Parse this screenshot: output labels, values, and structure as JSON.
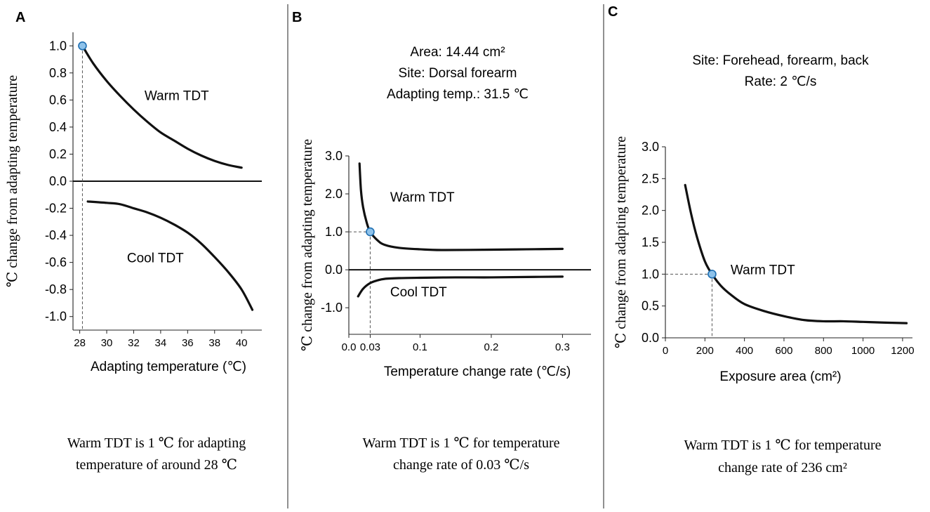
{
  "colors": {
    "curve": "#111111",
    "marker_fill": "#8ec2ea",
    "marker_stroke": "#1f6fb2",
    "divider": "#555555"
  },
  "chart_data": [
    {
      "letter": "A",
      "type": "line",
      "xlabel": "Adapting temperature (℃)",
      "ylabel": "℃ change from adapting temperature",
      "xlim": [
        27.5,
        41.5
      ],
      "ylim": [
        -1.1,
        1.1
      ],
      "xticks": [
        28,
        30,
        32,
        34,
        36,
        38,
        40
      ],
      "xtick_labels": [
        "28",
        "30",
        "32",
        "34",
        "36",
        "38",
        "40"
      ],
      "yticks": [
        1.0,
        0.8,
        0.6,
        0.4,
        0.2,
        0.0,
        -0.2,
        -0.4,
        -0.6,
        -0.8,
        -1.0
      ],
      "ytick_labels": [
        "1.0",
        "0.8",
        "0.6",
        "0.4",
        "0.2",
        "0.0",
        "-0.2",
        "-0.4",
        "-0.6",
        "-0.8",
        "-1.0"
      ],
      "baseline": {
        "y": 0.0,
        "x_from": 27.5,
        "x_to": 41.5
      },
      "series": [
        {
          "name": "Warm TDT",
          "x": [
            28.2,
            29.0,
            30.0,
            31.0,
            32.0,
            33.0,
            34.0,
            35.0,
            36.0,
            37.0,
            38.0,
            39.0,
            40.0
          ],
          "y": [
            1.0,
            0.87,
            0.74,
            0.63,
            0.53,
            0.44,
            0.36,
            0.3,
            0.24,
            0.19,
            0.15,
            0.12,
            0.1
          ]
        },
        {
          "name": "Cool TDT",
          "x": [
            28.6,
            30.0,
            31.0,
            32.0,
            33.0,
            34.0,
            35.0,
            36.0,
            37.0,
            38.0,
            39.0,
            40.0,
            40.8
          ],
          "y": [
            -0.15,
            -0.16,
            -0.17,
            -0.2,
            -0.23,
            -0.27,
            -0.32,
            -0.38,
            -0.46,
            -0.56,
            -0.67,
            -0.8,
            -0.95
          ]
        }
      ],
      "curve_labels": [
        {
          "text": "Warm TDT",
          "x": 32.8,
          "y": 0.6
        },
        {
          "text": "Cool TDT",
          "x": 31.5,
          "y": -0.6
        }
      ],
      "marker": {
        "x": 28.2,
        "y": 1.0
      },
      "guides": [
        {
          "x1": 28.2,
          "y1": 1.0,
          "x2": 28.2,
          "y2": -1.1
        }
      ],
      "info_lines": [],
      "note_lines": [
        "Warm TDT is 1 ℃ for adapting",
        "temperature of around 28 ℃"
      ]
    },
    {
      "letter": "B",
      "type": "line",
      "xlabel": "Temperature change rate (℃/s)",
      "ylabel": "℃ change from adapting temperature",
      "xlim": [
        0.0,
        0.34
      ],
      "ylim": [
        -1.7,
        3.0
      ],
      "xticks": [
        0.0,
        0.03,
        0.1,
        0.2,
        0.3
      ],
      "xtick_labels": [
        "0.0",
        "0.03",
        "0.1",
        "0.2",
        "0.3"
      ],
      "yticks": [
        3.0,
        2.0,
        1.0,
        0.0,
        -1.0
      ],
      "ytick_labels": [
        "3.0",
        "2.0",
        "1.0",
        "0.0",
        "-1.0"
      ],
      "baseline": {
        "y": 0.0,
        "x_from": 0.0,
        "x_to": 0.34
      },
      "series": [
        {
          "name": "Warm TDT",
          "x": [
            0.015,
            0.017,
            0.02,
            0.025,
            0.03,
            0.04,
            0.05,
            0.07,
            0.1,
            0.13,
            0.2,
            0.25,
            0.3
          ],
          "y": [
            2.8,
            2.1,
            1.65,
            1.25,
            1.0,
            0.78,
            0.66,
            0.58,
            0.54,
            0.52,
            0.53,
            0.54,
            0.55
          ]
        },
        {
          "name": "Cool TDT",
          "x": [
            0.013,
            0.02,
            0.03,
            0.04,
            0.05,
            0.07,
            0.1,
            0.15,
            0.2,
            0.25,
            0.3
          ],
          "y": [
            -0.7,
            -0.5,
            -0.35,
            -0.28,
            -0.24,
            -0.22,
            -0.21,
            -0.2,
            -0.2,
            -0.19,
            -0.18
          ]
        }
      ],
      "curve_labels": [
        {
          "text": "Warm TDT",
          "x": 0.058,
          "y": 1.8
        },
        {
          "text": "Cool TDT",
          "x": 0.058,
          "y": -0.7
        }
      ],
      "marker": {
        "x": 0.03,
        "y": 1.0
      },
      "guides": [
        {
          "x1": 0.0,
          "y1": 1.0,
          "x2": 0.03,
          "y2": 1.0
        },
        {
          "x1": 0.03,
          "y1": 1.0,
          "x2": 0.03,
          "y2": -1.7
        }
      ],
      "info_lines": [
        "Area: 14.44 cm²",
        "Site: Dorsal forearm",
        "Adapting temp.: 31.5 ℃"
      ],
      "note_lines": [
        "Warm TDT is 1 ℃ for temperature",
        "change rate of 0.03 ℃/s"
      ]
    },
    {
      "letter": "C",
      "type": "line",
      "xlabel": "Exposure area (cm²)",
      "ylabel": "℃ change from adapting temperature",
      "xlim": [
        0,
        1250
      ],
      "ylim": [
        0.0,
        3.0
      ],
      "xticks": [
        0,
        200,
        400,
        600,
        800,
        1000,
        1200
      ],
      "xtick_labels": [
        "0",
        "200",
        "400",
        "600",
        "800",
        "1000",
        "1200"
      ],
      "yticks": [
        3.0,
        2.5,
        2.0,
        1.5,
        1.0,
        0.5,
        0.0
      ],
      "ytick_labels": [
        "3.0",
        "2.5",
        "2.0",
        "1.5",
        "1.0",
        "0.5",
        "0.0"
      ],
      "baseline": null,
      "series": [
        {
          "name": "Warm TDT",
          "x": [
            100,
            130,
            160,
            200,
            236,
            280,
            330,
            400,
            500,
            600,
            700,
            800,
            900,
            1000,
            1100,
            1220
          ],
          "y": [
            2.4,
            1.95,
            1.58,
            1.2,
            1.0,
            0.82,
            0.68,
            0.53,
            0.42,
            0.34,
            0.28,
            0.26,
            0.26,
            0.25,
            0.24,
            0.23
          ]
        }
      ],
      "curve_labels": [
        {
          "text": "Warm TDT",
          "x": 330,
          "y": 1.0
        }
      ],
      "marker": {
        "x": 236,
        "y": 1.0
      },
      "guides": [
        {
          "x1": 0,
          "y1": 1.0,
          "x2": 236,
          "y2": 1.0
        },
        {
          "x1": 236,
          "y1": 1.0,
          "x2": 236,
          "y2": 0.0
        }
      ],
      "info_lines": [
        "Site: Forehead, forearm, back",
        "Rate: 2 ℃/s"
      ],
      "note_lines": [
        "Warm TDT is 1 ℃ for temperature",
        "change rate of 236 cm²"
      ]
    }
  ]
}
